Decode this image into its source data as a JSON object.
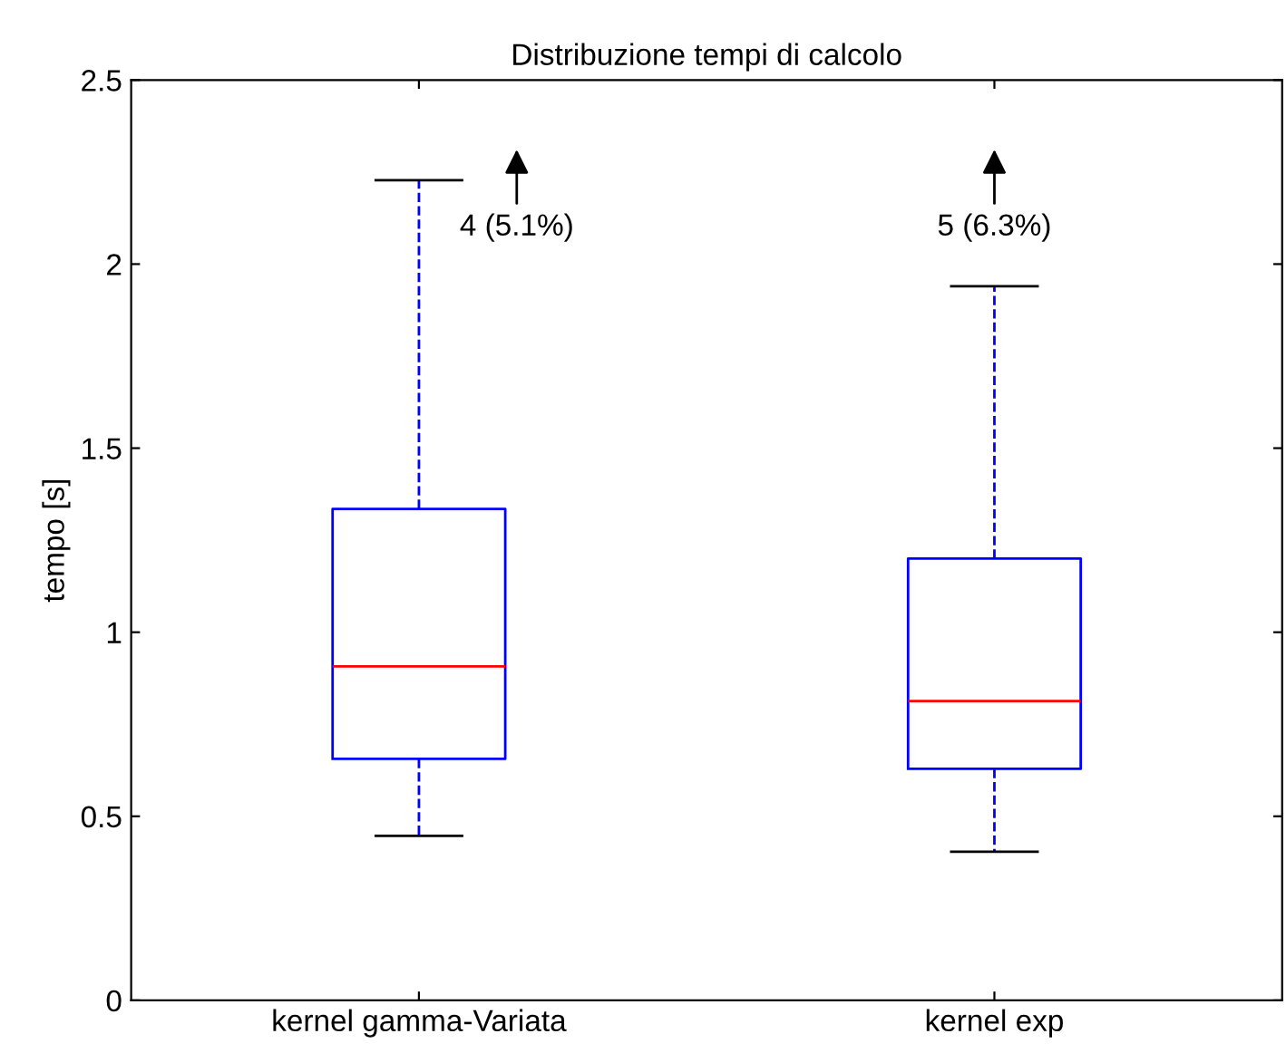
{
  "chart_data": {
    "type": "box",
    "title": "Distribuzione tempi di calcolo",
    "ylabel": "tempo [s]",
    "categories": [
      "kernel gamma-Variata",
      "kernel exp"
    ],
    "boxes": [
      {
        "low": 0.447,
        "q1": 0.656,
        "median": 0.907,
        "q3": 1.335,
        "high": 2.228
      },
      {
        "low": 0.404,
        "q1": 0.629,
        "median": 0.813,
        "q3": 1.2,
        "high": 1.94
      }
    ],
    "annotations": [
      "4 (5.1%)",
      "5 (6.3%)"
    ],
    "ylim": [
      0,
      2.5
    ],
    "yticks": [
      0,
      0.5,
      1,
      1.5,
      2,
      2.5
    ],
    "grid": false
  }
}
